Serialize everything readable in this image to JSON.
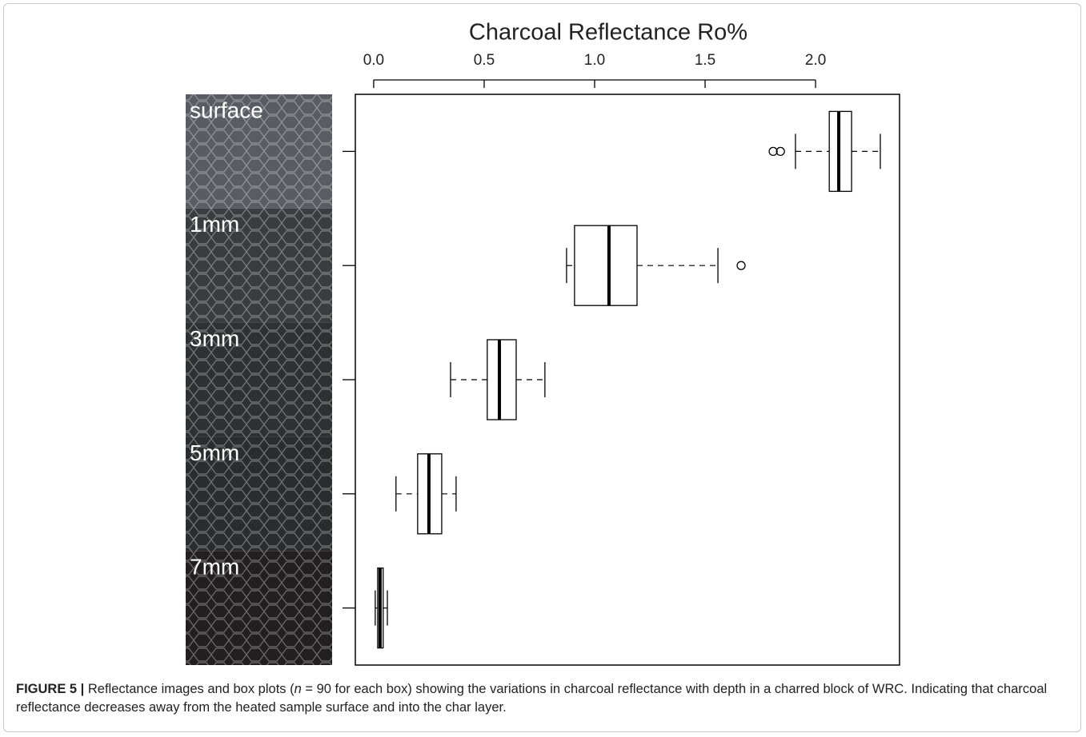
{
  "chart_data": {
    "type": "boxplot",
    "title": "Charcoal Reflectance Ro%",
    "categories": [
      "surface",
      "1mm",
      "3mm",
      "5mm",
      "7mm"
    ],
    "boxes": [
      {
        "whisker_low": 1.909,
        "q1": 2.062,
        "median": 2.105,
        "q3": 2.163,
        "whisker_high": 2.293,
        "outliers": [
          1.808,
          1.841
        ]
      },
      {
        "whisker_low": 0.873,
        "q1": 0.909,
        "median": 1.065,
        "q3": 1.192,
        "whisker_high": 1.558,
        "outliers": [
          1.663
        ]
      },
      {
        "whisker_low": 0.348,
        "q1": 0.514,
        "median": 0.569,
        "q3": 0.645,
        "whisker_high": 0.775,
        "outliers": []
      },
      {
        "whisker_low": 0.101,
        "q1": 0.199,
        "median": 0.25,
        "q3": 0.308,
        "whisker_high": 0.373,
        "outliers": []
      },
      {
        "whisker_low": 0.007,
        "q1": 0.018,
        "median": 0.029,
        "q3": 0.043,
        "whisker_high": 0.062,
        "outliers": []
      }
    ],
    "xlim": [
      -0.083,
      2.38
    ],
    "xticks": [
      {
        "value": 0,
        "label": "0.0"
      },
      0.5,
      {
        "value": 1,
        "label": "1.0"
      },
      1.5,
      {
        "value": 2,
        "label": "2.0"
      }
    ],
    "panel_colors": [
      "#5a5c64",
      "#3b3c3f",
      "#2f3031",
      "#2b2c2d",
      "#211f20"
    ],
    "color": "#000000"
  },
  "caption": {
    "label": "FIGURE 5 |",
    "text_before": " Reflectance images and box plots (",
    "variable": "n",
    "text_after": " = 90 for each box) showing the variations in charcoal reflectance with depth in a charred block of WRC. Indicating that charcoal reflectance decreases away from the heated sample surface and into the char layer."
  }
}
